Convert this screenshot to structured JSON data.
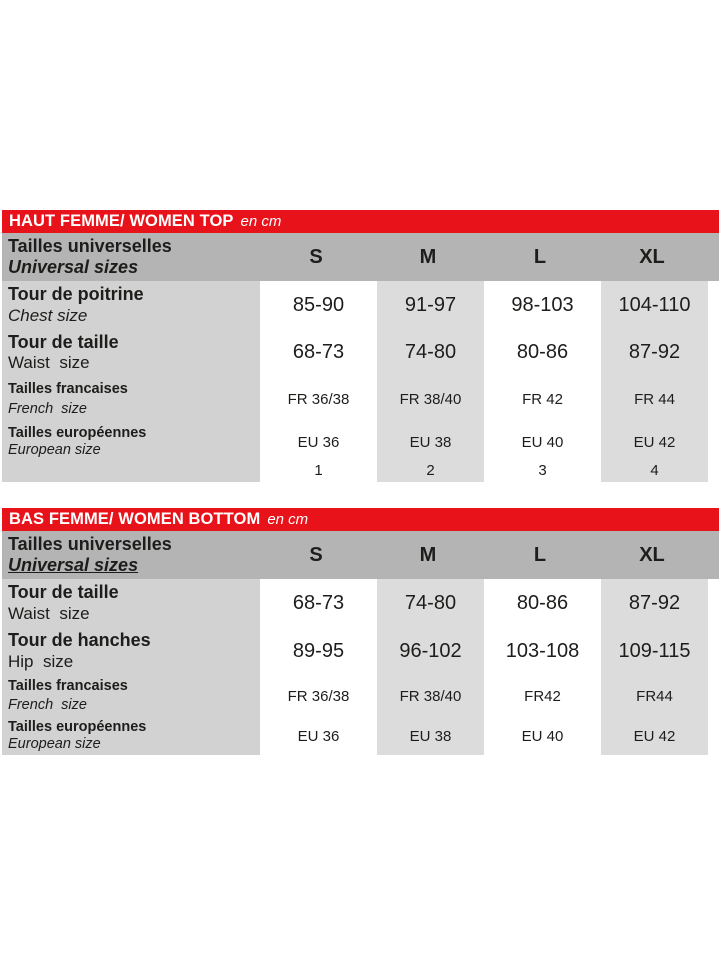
{
  "colors": {
    "accent_red": "#e8121a",
    "header_band_gray": "#b4b4b4",
    "label_column_gray": "#d2d2d2",
    "alt_column_gray": "#dcdcdc",
    "text": "#1d1d1b",
    "page_background": "#ffffff"
  },
  "tables": [
    {
      "title": "HAUT FEMME/ WOMEN TOP",
      "unit": "en cm",
      "header": {
        "label_fr": "Tailles universelles",
        "label_en": "Universal sizes",
        "sizes": [
          "S",
          "M",
          "L",
          "XL"
        ]
      },
      "rows": [
        {
          "label_fr": "Tour de poitrine",
          "label_en": "Chest size",
          "values": [
            "85-90",
            "91-97",
            "98-103",
            "104-110"
          ]
        },
        {
          "label_fr": "Tour de taille",
          "label_en": "Waist  size",
          "values": [
            "68-73",
            "74-80",
            "80-86",
            "87-92"
          ]
        },
        {
          "label_fr": "Tailles francaises",
          "label_en": "French  size",
          "values": [
            "FR 36/38",
            "FR 38/40",
            "FR 42",
            "FR 44"
          ]
        },
        {
          "label_fr": "Tailles européennes",
          "label_en": "European size",
          "values": [
            "EU 36",
            "EU 38",
            "EU 40",
            "EU 42"
          ]
        },
        {
          "label_fr": "",
          "label_en": "",
          "values": [
            "1",
            "2",
            "3",
            "4"
          ]
        }
      ]
    },
    {
      "title": "BAS FEMME/ WOMEN BOTTOM",
      "unit": "en cm",
      "header": {
        "label_fr": "Tailles universelles",
        "label_en": "Universal sizes",
        "sizes": [
          "S",
          "M",
          "L",
          "XL"
        ]
      },
      "rows": [
        {
          "label_fr": "Tour de taille",
          "label_en": "Waist  size",
          "values": [
            "68-73",
            "74-80",
            "80-86",
            "87-92"
          ]
        },
        {
          "label_fr": "Tour de hanches",
          "label_en": "Hip  size",
          "values": [
            "89-95",
            "96-102",
            "103-108",
            "109-115"
          ]
        },
        {
          "label_fr": "Tailles francaises",
          "label_en": "French  size",
          "values": [
            "FR 36/38",
            "FR 38/40",
            "FR42",
            "FR44"
          ]
        },
        {
          "label_fr": "Tailles européennes",
          "label_en": "European size",
          "values": [
            "EU 36",
            "EU 38",
            "EU 40",
            "EU 42"
          ]
        }
      ]
    }
  ]
}
